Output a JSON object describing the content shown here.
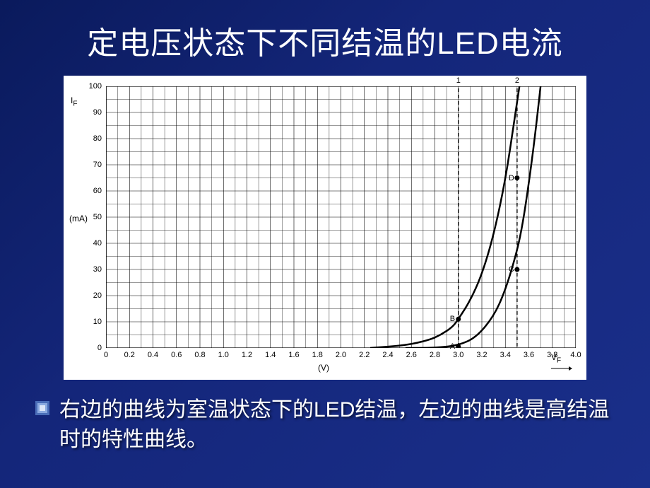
{
  "slide": {
    "title": "定电压状态下不同结温的LED电流",
    "caption": "右边的曲线为室温状态下的LED结温，左边的曲线是高结温时的特性曲线。",
    "background_gradient": [
      "#0a1a5c",
      "#1a2f8a"
    ],
    "title_color": "#ffffff",
    "title_fontsize": 44,
    "caption_color": "#ffffff",
    "caption_fontsize": 30,
    "bullet_colors": [
      "#8aa9e0",
      "#b4c7f0",
      "#ffffff"
    ]
  },
  "chart": {
    "type": "line",
    "background_color": "#ffffff",
    "grid_color": "#000000",
    "grid_minor_count_x": 2,
    "grid_minor_count_y": 2,
    "y_label": "I",
    "y_sub": "F",
    "y_unit": "(mA)",
    "x_unit": "(V)",
    "x_sub": "V",
    "x_sub2": "F",
    "xlim": [
      0,
      4.0
    ],
    "ylim": [
      0,
      100
    ],
    "x_ticks": [
      0,
      0.2,
      0.4,
      0.6,
      0.8,
      1.0,
      1.2,
      1.4,
      1.6,
      1.8,
      2.0,
      2.2,
      2.4,
      2.6,
      2.8,
      3.0,
      3.2,
      3.4,
      3.6,
      3.8,
      4.0
    ],
    "y_ticks": [
      0,
      10,
      20,
      30,
      40,
      50,
      60,
      70,
      80,
      90,
      100
    ],
    "series": [
      {
        "name": "high-temp-curve",
        "label": "1",
        "color": "#000000",
        "line_width": 2.5,
        "points": [
          [
            2.25,
            0
          ],
          [
            2.55,
            1
          ],
          [
            2.75,
            3
          ],
          [
            2.85,
            5
          ],
          [
            2.95,
            8
          ],
          [
            3.0,
            11
          ],
          [
            3.1,
            18
          ],
          [
            3.2,
            28
          ],
          [
            3.3,
            43
          ],
          [
            3.4,
            64
          ],
          [
            3.48,
            88
          ],
          [
            3.52,
            100
          ]
        ]
      },
      {
        "name": "room-temp-curve",
        "label": "2",
        "color": "#000000",
        "line_width": 2.5,
        "points": [
          [
            2.55,
            0
          ],
          [
            2.8,
            0
          ],
          [
            3.0,
            1
          ],
          [
            3.15,
            4
          ],
          [
            3.3,
            12
          ],
          [
            3.4,
            22
          ],
          [
            3.5,
            37
          ],
          [
            3.55,
            48
          ],
          [
            3.6,
            63
          ],
          [
            3.65,
            80
          ],
          [
            3.7,
            100
          ]
        ]
      }
    ],
    "vertical_refs": [
      {
        "x": 3.0,
        "label": "1",
        "style": "dashed"
      },
      {
        "x": 3.5,
        "label": "2",
        "style": "dashed"
      }
    ],
    "markers": [
      {
        "x": 3.0,
        "y": 0.5,
        "label": "A"
      },
      {
        "x": 3.0,
        "y": 11,
        "label": "B"
      },
      {
        "x": 3.5,
        "y": 30,
        "label": "C"
      },
      {
        "x": 3.5,
        "y": 65,
        "label": "D"
      }
    ],
    "marker_radius": 3.5,
    "marker_color": "#000000"
  }
}
